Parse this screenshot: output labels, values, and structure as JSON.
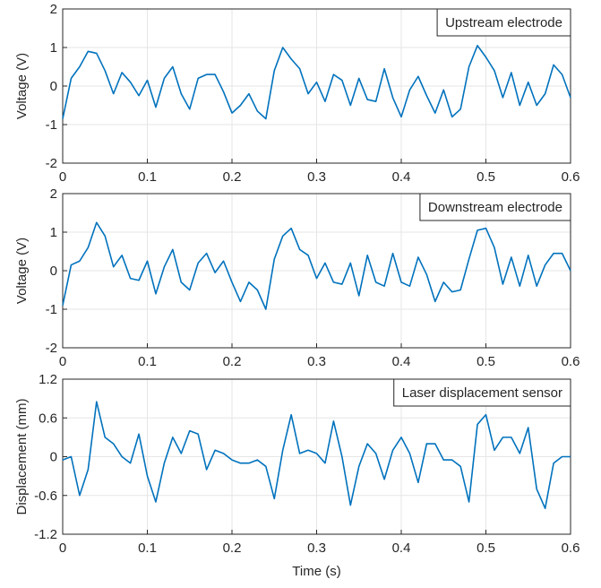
{
  "chart_data": [
    {
      "type": "line",
      "ylabel": "Voltage (V)",
      "grid": true,
      "legend": "upper right",
      "x": [
        0,
        0.01,
        0.02,
        0.03,
        0.04,
        0.05,
        0.06,
        0.07,
        0.08,
        0.09,
        0.1,
        0.11,
        0.12,
        0.13,
        0.14,
        0.15,
        0.16,
        0.17,
        0.18,
        0.19,
        0.2,
        0.21,
        0.22,
        0.23,
        0.24,
        0.25,
        0.26,
        0.27,
        0.28,
        0.29,
        0.3,
        0.31,
        0.32,
        0.33,
        0.34,
        0.35,
        0.36,
        0.37,
        0.38,
        0.39,
        0.4,
        0.41,
        0.42,
        0.43,
        0.44,
        0.45,
        0.46,
        0.47,
        0.48,
        0.49,
        0.5,
        0.51,
        0.52,
        0.53,
        0.54,
        0.55,
        0.56,
        0.57,
        0.58,
        0.59,
        0.6
      ],
      "xlim": [
        0,
        0.6
      ],
      "xticks": [
        0,
        0.1,
        0.2,
        0.3,
        0.4,
        0.5,
        0.6
      ],
      "ylim": [
        -2,
        2
      ],
      "yticks": [
        -2,
        -1,
        0,
        1,
        2
      ],
      "series": [
        {
          "name": "Upstream electrode",
          "color": "#0072bd",
          "values": [
            -0.85,
            0.2,
            0.5,
            0.9,
            0.85,
            0.4,
            -0.2,
            0.35,
            0.1,
            -0.25,
            0.15,
            -0.55,
            0.2,
            0.5,
            -0.2,
            -0.6,
            0.2,
            0.3,
            0.3,
            -0.15,
            -0.7,
            -0.5,
            -0.2,
            -0.65,
            -0.85,
            0.4,
            1.0,
            0.7,
            0.45,
            -0.2,
            0.1,
            -0.4,
            0.3,
            0.15,
            -0.5,
            0.2,
            -0.35,
            -0.4,
            0.45,
            -0.3,
            -0.8,
            -0.1,
            0.25,
            -0.25,
            -0.7,
            -0.1,
            -0.8,
            -0.6,
            0.5,
            1.05,
            0.75,
            0.4,
            -0.3,
            0.35,
            -0.5,
            0.1,
            -0.5,
            -0.2,
            0.55,
            0.3,
            -0.3
          ]
        }
      ]
    },
    {
      "type": "line",
      "ylabel": "Voltage (V)",
      "grid": true,
      "legend": "upper right",
      "x": [
        0,
        0.01,
        0.02,
        0.03,
        0.04,
        0.05,
        0.06,
        0.07,
        0.08,
        0.09,
        0.1,
        0.11,
        0.12,
        0.13,
        0.14,
        0.15,
        0.16,
        0.17,
        0.18,
        0.19,
        0.2,
        0.21,
        0.22,
        0.23,
        0.24,
        0.25,
        0.26,
        0.27,
        0.28,
        0.29,
        0.3,
        0.31,
        0.32,
        0.33,
        0.34,
        0.35,
        0.36,
        0.37,
        0.38,
        0.39,
        0.4,
        0.41,
        0.42,
        0.43,
        0.44,
        0.45,
        0.46,
        0.47,
        0.48,
        0.49,
        0.5,
        0.51,
        0.52,
        0.53,
        0.54,
        0.55,
        0.56,
        0.57,
        0.58,
        0.59,
        0.6
      ],
      "xlim": [
        0,
        0.6
      ],
      "xticks": [
        0,
        0.1,
        0.2,
        0.3,
        0.4,
        0.5,
        0.6
      ],
      "ylim": [
        -2,
        2
      ],
      "yticks": [
        -2,
        -1,
        0,
        1,
        2
      ],
      "series": [
        {
          "name": "Downstream electrode",
          "color": "#0072bd",
          "values": [
            -0.9,
            0.15,
            0.25,
            0.6,
            1.25,
            0.9,
            0.1,
            0.4,
            -0.2,
            -0.25,
            0.25,
            -0.6,
            0.1,
            0.55,
            -0.3,
            -0.5,
            0.2,
            0.45,
            -0.05,
            0.25,
            -0.3,
            -0.8,
            -0.3,
            -0.5,
            -1.0,
            0.3,
            0.9,
            1.1,
            0.55,
            0.4,
            -0.2,
            0.2,
            -0.3,
            -0.35,
            0.2,
            -0.65,
            0.4,
            -0.3,
            -0.4,
            0.45,
            -0.3,
            -0.4,
            0.35,
            -0.1,
            -0.8,
            -0.3,
            -0.55,
            -0.5,
            0.3,
            1.05,
            1.1,
            0.6,
            -0.35,
            0.35,
            -0.4,
            0.4,
            -0.4,
            0.15,
            0.45,
            0.45,
            0.0
          ]
        }
      ]
    },
    {
      "type": "line",
      "ylabel": "Displacement (mm)",
      "xlabel": "Time (s)",
      "grid": true,
      "legend": "upper right",
      "x": [
        0,
        0.01,
        0.02,
        0.03,
        0.04,
        0.05,
        0.06,
        0.07,
        0.08,
        0.09,
        0.1,
        0.11,
        0.12,
        0.13,
        0.14,
        0.15,
        0.16,
        0.17,
        0.18,
        0.19,
        0.2,
        0.21,
        0.22,
        0.23,
        0.24,
        0.25,
        0.26,
        0.27,
        0.28,
        0.29,
        0.3,
        0.31,
        0.32,
        0.33,
        0.34,
        0.35,
        0.36,
        0.37,
        0.38,
        0.39,
        0.4,
        0.41,
        0.42,
        0.43,
        0.44,
        0.45,
        0.46,
        0.47,
        0.48,
        0.49,
        0.5,
        0.51,
        0.52,
        0.53,
        0.54,
        0.55,
        0.56,
        0.57,
        0.58,
        0.59,
        0.6
      ],
      "xlim": [
        0,
        0.6
      ],
      "xticks": [
        0,
        0.1,
        0.2,
        0.3,
        0.4,
        0.5,
        0.6
      ],
      "ylim": [
        -1.2,
        1.2
      ],
      "yticks": [
        -1.2,
        -0.6,
        0,
        0.6,
        1.2
      ],
      "series": [
        {
          "name": "Laser displacement sensor",
          "color": "#0072bd",
          "values": [
            -0.05,
            0.0,
            -0.6,
            -0.2,
            0.85,
            0.3,
            0.2,
            0.0,
            -0.1,
            0.35,
            -0.3,
            -0.7,
            -0.1,
            0.3,
            0.05,
            0.4,
            0.35,
            -0.2,
            0.1,
            0.05,
            -0.05,
            -0.1,
            -0.1,
            -0.05,
            -0.15,
            -0.65,
            0.1,
            0.65,
            0.05,
            0.1,
            0.05,
            -0.1,
            0.55,
            0.0,
            -0.75,
            -0.15,
            0.2,
            0.05,
            -0.35,
            0.1,
            0.3,
            0.05,
            -0.4,
            0.2,
            0.2,
            -0.05,
            -0.05,
            -0.15,
            -0.7,
            0.5,
            0.65,
            0.1,
            0.3,
            0.3,
            0.05,
            0.45,
            -0.5,
            -0.8,
            -0.1,
            0.0,
            0.0
          ]
        }
      ]
    }
  ]
}
